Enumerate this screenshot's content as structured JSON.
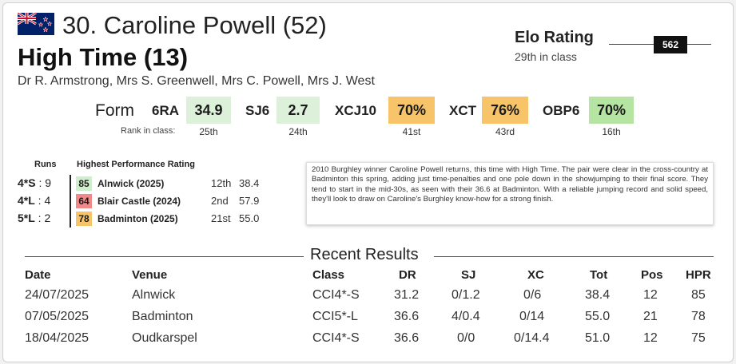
{
  "header": {
    "title": "30. Caroline Powell (52)",
    "horse": "High Time (13)",
    "owners": "Dr R. Armstrong, Mrs S. Greenwell, Mrs C. Powell, Mrs J. West",
    "flag_icon": "new-zealand-flag-icon"
  },
  "elo": {
    "title": "Elo Rating",
    "subtitle": "29th in class",
    "value": "562"
  },
  "form": {
    "label": "Form",
    "rank_label": "Rank in class:",
    "items": [
      {
        "code": "6RA",
        "value": "34.9",
        "rank": "25th",
        "color": "#dcf0da"
      },
      {
        "code": "SJ6",
        "value": "2.7",
        "rank": "24th",
        "color": "#dcf0da"
      },
      {
        "code": "XCJ10",
        "value": "70%",
        "rank": "41st",
        "color": "#f7c46a"
      },
      {
        "code": "XCT",
        "value": "76%",
        "rank": "43rd",
        "color": "#f7c46a"
      },
      {
        "code": "OBP6",
        "value": "70%",
        "rank": "16th",
        "color": "#b6e4a3"
      }
    ]
  },
  "runs": {
    "header": "Runs",
    "hpr_header": "Highest Performance Rating",
    "rows": [
      {
        "level": "4*S",
        "count": "9",
        "hpr": "85",
        "hpr_color": "#cfeecb",
        "event": "Alnwick (2025)",
        "pos": "12th",
        "score": "38.4"
      },
      {
        "level": "4*L",
        "count": "4",
        "hpr": "64",
        "hpr_color": "#f08a8a",
        "event": "Blair Castle (2024)",
        "pos": "2nd",
        "score": "57.9"
      },
      {
        "level": "5*L",
        "count": "2",
        "hpr": "78",
        "hpr_color": "#f7c46a",
        "event": "Badminton (2025)",
        "pos": "21st",
        "score": "55.0"
      }
    ]
  },
  "description": "2010 Burghley winner Caroline Powell returns, this time with High Time. The pair were clear in the cross-country at Badminton this spring, adding just time-penalties and one pole down in the showjumping to their final score. They tend to start in the mid-30s, as seen with their 36.6 at Badminton. With a reliable jumping record and solid speed, they'll look to draw on Caroline's Burghley know-how for a strong finish.",
  "recent": {
    "title": "Recent Results",
    "columns": [
      "Date",
      "Venue",
      "Class",
      "DR",
      "SJ",
      "XC",
      "Tot",
      "Pos",
      "HPR"
    ],
    "rows": [
      [
        "24/07/2025",
        "Alnwick",
        "CCI4*-S",
        "31.2",
        "0/1.2",
        "0/6",
        "38.4",
        "12",
        "85"
      ],
      [
        "07/05/2025",
        "Badminton",
        "CCI5*-L",
        "36.6",
        "4/0.4",
        "0/14",
        "55.0",
        "21",
        "78"
      ],
      [
        "18/04/2025",
        "Oudkarspel",
        "CCI4*-S",
        "36.6",
        "0/0",
        "0/14.4",
        "51.0",
        "12",
        "75"
      ]
    ]
  }
}
